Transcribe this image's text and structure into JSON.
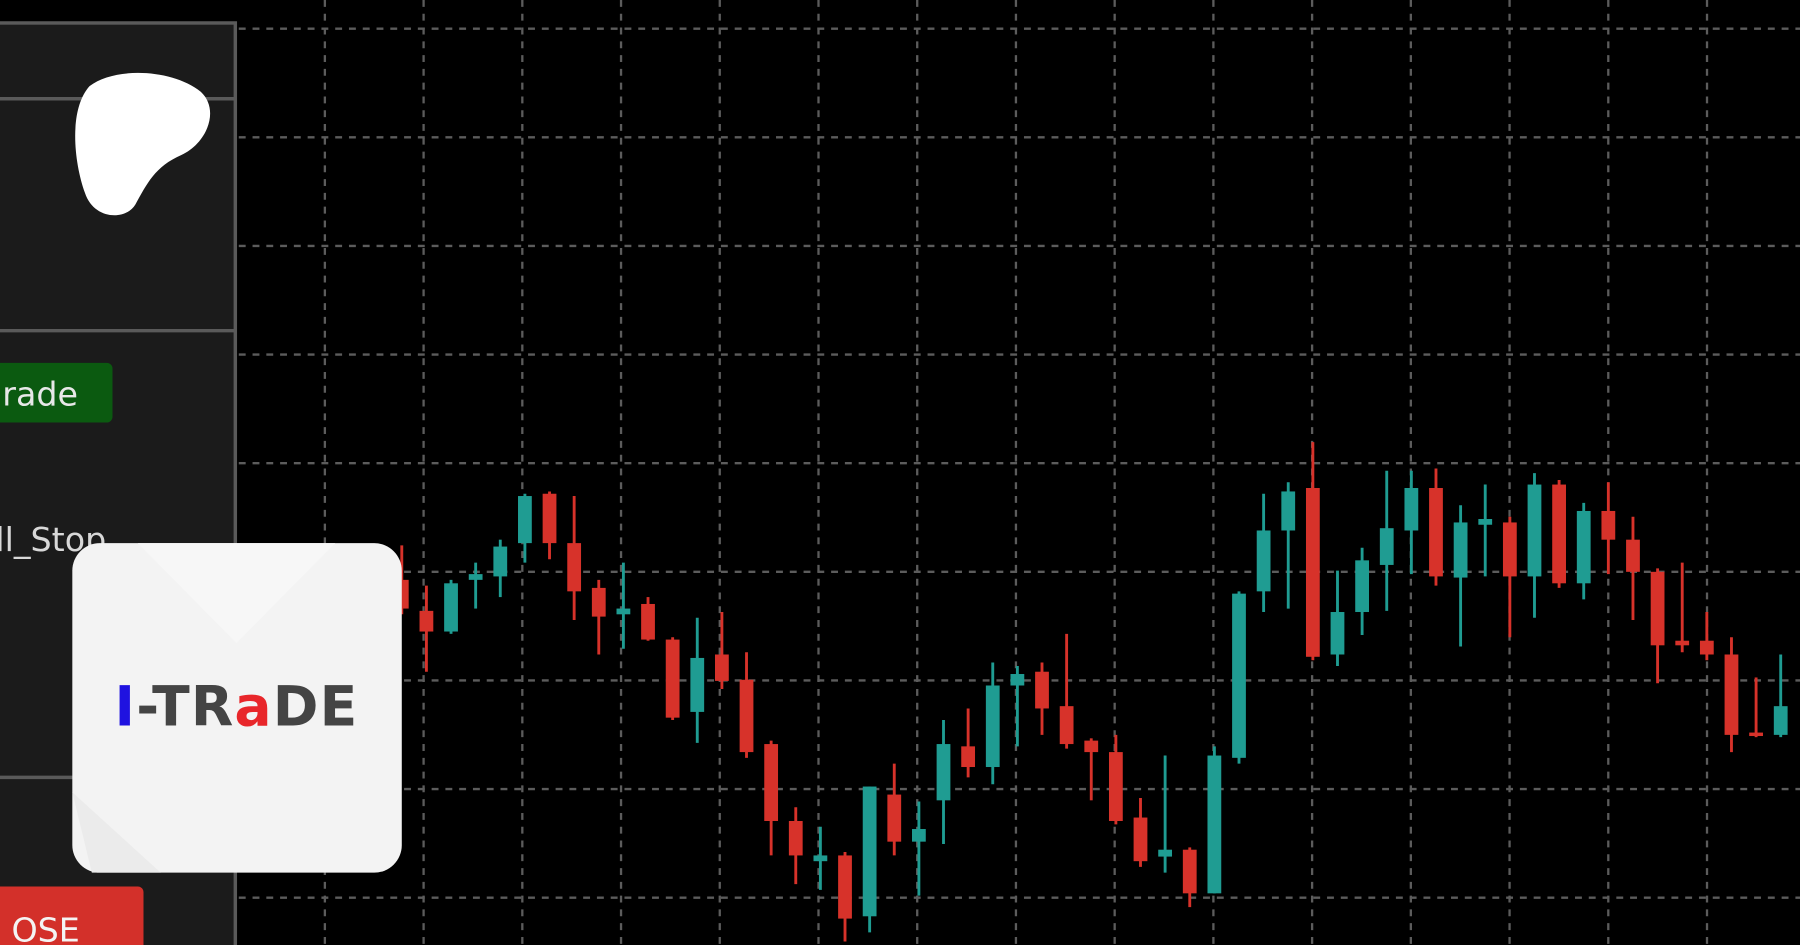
{
  "chart_data": {
    "type": "candlestick",
    "open": [
      318,
      291,
      273,
      318,
      321,
      350,
      393,
      350,
      311,
      288,
      297,
      266,
      203,
      253,
      231,
      175,
      108,
      73,
      78,
      25,
      131,
      90,
      126,
      173,
      155,
      226,
      238,
      208,
      178,
      168,
      111,
      77,
      83,
      45,
      163,
      308,
      361,
      398,
      253,
      290,
      331,
      361,
      398,
      320,
      366,
      368,
      321,
      401,
      315,
      378,
      353,
      325,
      265,
      265,
      253,
      185,
      183
    ],
    "high": [
      348,
      313,
      318,
      333,
      353,
      393,
      395,
      391,
      318,
      333,
      303,
      268,
      285,
      290,
      255,
      178,
      120,
      103,
      81,
      138,
      158,
      125,
      196,
      206,
      246,
      243,
      246,
      271,
      180,
      183,
      128,
      165,
      85,
      173,
      308,
      393,
      403,
      438,
      326,
      346,
      413,
      413,
      415,
      383,
      401,
      373,
      411,
      405,
      385,
      403,
      373,
      328,
      333,
      290,
      268,
      233,
      253
    ],
    "low": [
      288,
      238,
      271,
      293,
      303,
      333,
      336,
      283,
      253,
      258,
      265,
      196,
      176,
      223,
      163,
      78,
      53,
      48,
      3,
      11,
      78,
      43,
      88,
      146,
      140,
      173,
      183,
      171,
      126,
      105,
      68,
      63,
      33,
      45,
      158,
      290,
      293,
      248,
      243,
      270,
      291,
      323,
      313,
      260,
      321,
      268,
      285,
      311,
      301,
      323,
      283,
      228,
      255,
      248,
      168,
      181,
      181
    ],
    "close": [
      293,
      273,
      315,
      323,
      347,
      391,
      350,
      308,
      286,
      293,
      266,
      198,
      250,
      230,
      168,
      108,
      78,
      78,
      23,
      138,
      90,
      101,
      175,
      155,
      226,
      236,
      206,
      175,
      168,
      108,
      73,
      83,
      45,
      165,
      306,
      361,
      395,
      251,
      290,
      335,
      363,
      398,
      321,
      368,
      371,
      321,
      401,
      315,
      378,
      353,
      325,
      261,
      261,
      253,
      183,
      183,
      208
    ],
    "up_color": "#1f9c92",
    "down_color": "#d7322a",
    "ylim": [
      0,
      823
    ],
    "grid": true
  },
  "panel": {
    "trade_button": "rade",
    "stop_label": "ll_Stop",
    "close_button": "OSE"
  },
  "logo_card": {
    "parts": [
      "I",
      "-TR",
      "a",
      "DE"
    ]
  }
}
